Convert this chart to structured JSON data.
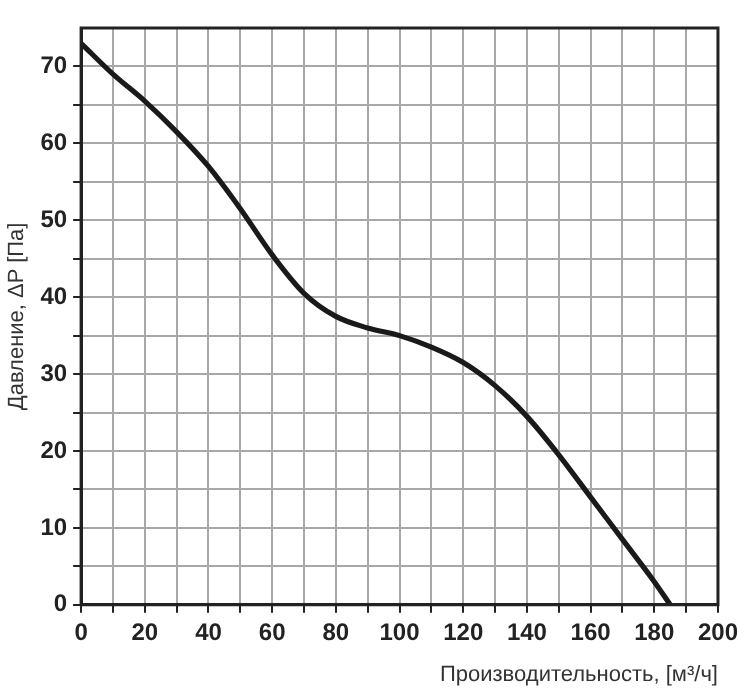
{
  "chart_data": {
    "type": "line",
    "xlabel": "Производительность, [м³/ч]",
    "ylabel": "Давление, ΔP [Па]",
    "x": [
      0,
      10,
      20,
      30,
      40,
      50,
      60,
      70,
      80,
      90,
      100,
      110,
      120,
      130,
      140,
      150,
      160,
      170,
      180,
      185
    ],
    "series": [
      {
        "color": "#1a1a1a",
        "values": [
          73,
          69,
          65.5,
          61.5,
          57,
          51.5,
          45.5,
          40.5,
          37.5,
          36,
          35,
          33.5,
          31.5,
          28.5,
          24.5,
          19.5,
          14,
          8.5,
          3,
          0
        ]
      }
    ],
    "xlim": [
      0,
      200
    ],
    "ylim": [
      0,
      75
    ],
    "xticks": [
      0,
      {
        "value": 10,
        "label": null
      },
      20,
      {
        "value": 30,
        "label": null
      },
      40,
      {
        "value": 50,
        "label": null
      },
      60,
      {
        "value": 70,
        "label": null
      },
      80,
      {
        "value": 90,
        "label": null
      },
      100,
      {
        "value": 110,
        "label": null
      },
      120,
      {
        "value": 130,
        "label": null
      },
      140,
      {
        "value": 150,
        "label": null
      },
      160,
      {
        "value": 170,
        "label": null
      },
      180,
      {
        "value": 190,
        "label": null
      },
      200
    ],
    "yticks": [
      0,
      {
        "value": 5,
        "label": null
      },
      10,
      {
        "value": 15,
        "label": null
      },
      20,
      {
        "value": 25,
        "label": null
      },
      30,
      {
        "value": 35,
        "label": null
      },
      40,
      {
        "value": 45,
        "label": null
      },
      50,
      {
        "value": 55,
        "label": null
      },
      60,
      {
        "value": 65,
        "label": null
      },
      70
    ],
    "grid": true,
    "legend": false,
    "marker": "none",
    "line_style": "solid"
  }
}
